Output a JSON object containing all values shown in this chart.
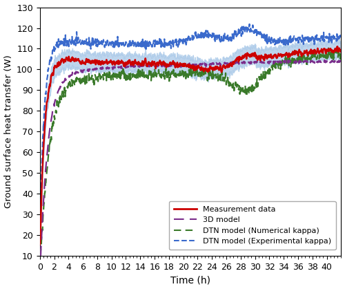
{
  "title": "",
  "xlabel": "Time (h)",
  "ylabel": "Ground surface heat transfer (W)",
  "xlim": [
    0,
    42
  ],
  "ylim": [
    10,
    130
  ],
  "xticks": [
    0,
    2,
    4,
    6,
    8,
    10,
    12,
    14,
    16,
    18,
    20,
    22,
    24,
    26,
    28,
    30,
    32,
    34,
    36,
    38,
    40
  ],
  "yticks": [
    10,
    20,
    30,
    40,
    50,
    60,
    70,
    80,
    90,
    100,
    110,
    120,
    130
  ],
  "measurement_color": "#cc0000",
  "band_color": "#a8c8e8",
  "model_3d_color": "#7b2d8b",
  "dtn_numerical_color": "#3a7a2a",
  "dtn_experimental_color": "#3a6acc",
  "legend_labels": [
    "Measurement data",
    "3D model",
    "DTN model (Numerical kappa)",
    "DTN model (Experimental kappa)"
  ],
  "figsize": [
    5.0,
    4.18
  ],
  "dpi": 100
}
